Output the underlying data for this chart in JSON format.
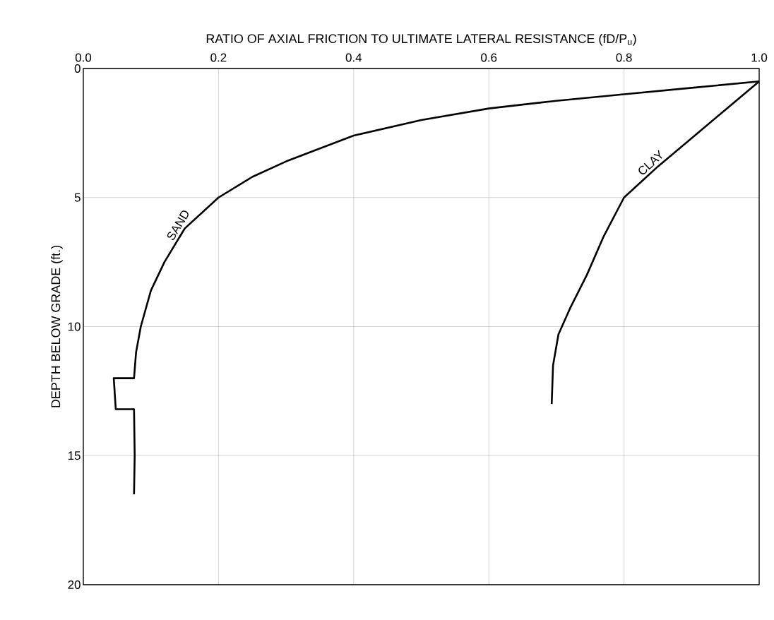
{
  "chart_data": {
    "type": "line",
    "xlabel": "RATIO OF AXIAL FRICTION TO ULTIMATE LATERAL RESISTANCE (fD/P$_{u}$)",
    "ylabel": "DEPTH BELOW GRADE (ft.)",
    "xlim": [
      0,
      1
    ],
    "ylim": [
      20,
      0
    ],
    "xticks": [
      {
        "value": 0,
        "label": "0.0"
      },
      {
        "value": 0.2,
        "label": "0.2"
      },
      {
        "value": 0.4,
        "label": "0.4"
      },
      {
        "value": 0.6,
        "label": "0.6"
      },
      {
        "value": 0.8,
        "label": "0.8"
      },
      {
        "value": 1,
        "label": "1.0"
      }
    ],
    "yticks": [
      0,
      5,
      10,
      15,
      20
    ],
    "grid": true,
    "marker": "none",
    "line_style": "solid",
    "series": [
      {
        "name": "SAND",
        "color": "#000000",
        "x": [
          1.0,
          0.9,
          0.8,
          0.7,
          0.6,
          0.5,
          0.4,
          0.3,
          0.25,
          0.2,
          0.15,
          0.12,
          0.1,
          0.085,
          0.078,
          0.075,
          0.045,
          0.048,
          0.075,
          0.076,
          0.075
        ],
        "values": [
          0.5,
          0.75,
          1.0,
          1.25,
          1.55,
          2.0,
          2.6,
          3.6,
          4.2,
          5.0,
          6.2,
          7.5,
          8.6,
          10.0,
          11.0,
          12.0,
          12.0,
          13.2,
          13.2,
          15.0,
          16.5
        ]
      },
      {
        "name": "CLAY",
        "color": "#000000",
        "x": [
          1.0,
          0.95,
          0.9,
          0.85,
          0.8,
          0.77,
          0.745,
          0.72,
          0.703,
          0.695,
          0.693
        ],
        "values": [
          0.5,
          1.6,
          2.7,
          3.8,
          5.0,
          6.5,
          8.0,
          9.3,
          10.3,
          11.5,
          13.0
        ]
      }
    ]
  }
}
